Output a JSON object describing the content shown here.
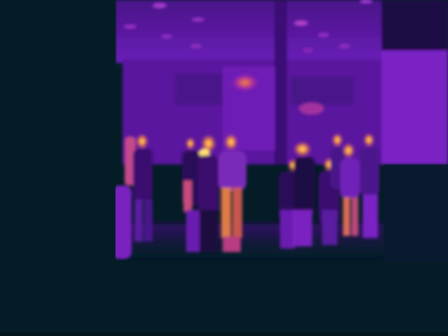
{
  "image": {
    "kind": "thermal-camera-frame",
    "palette": "inferno",
    "subject": "crowd-of-people-indoors",
    "colors": {
      "background": "#041c26",
      "cold": "#2a0a55",
      "cool": "#5a1598",
      "mid": "#8a2bd0",
      "warm": "#c040a0",
      "hot": "#f08a30",
      "hottest": "#ffd060"
    }
  }
}
